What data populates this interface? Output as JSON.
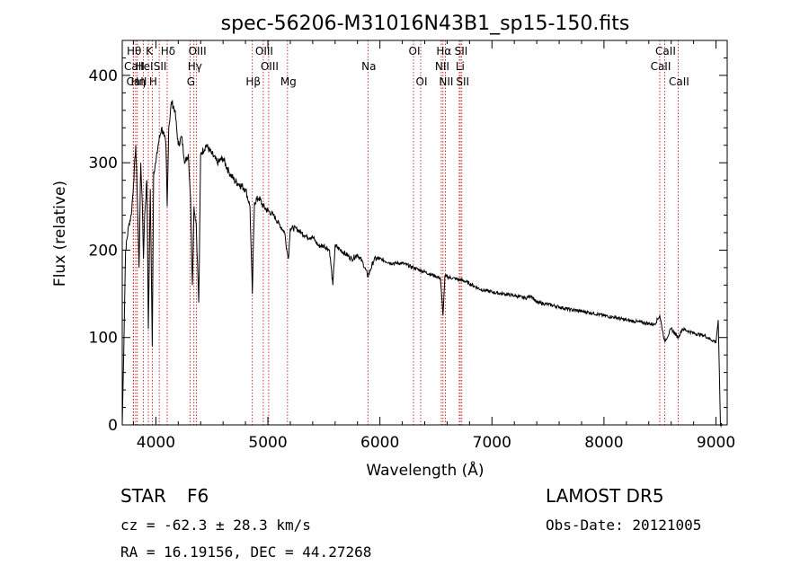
{
  "chart_data": {
    "type": "line",
    "title": "spec-56206-M31016N43B1_sp15-150.fits",
    "xlabel": "Wavelength (Å)",
    "ylabel": "Flux (relative)",
    "xlim": [
      3700,
      9100
    ],
    "ylim": [
      0,
      440
    ],
    "x_ticks": [
      "4000",
      "5000",
      "6000",
      "7000",
      "8000",
      "9000"
    ],
    "y_ticks": [
      "0",
      "100",
      "200",
      "300",
      "400"
    ],
    "grid": false,
    "line_color": "#000000",
    "marker_color": "#c00000",
    "spectrum": {
      "x": [
        3700,
        3710,
        3730,
        3760,
        3780,
        3800,
        3820,
        3835,
        3850,
        3865,
        3880,
        3889,
        3900,
        3920,
        3933,
        3950,
        3968,
        3980,
        4000,
        4020,
        4050,
        4075,
        4090,
        4101,
        4115,
        4140,
        4170,
        4200,
        4230,
        4260,
        4290,
        4310,
        4326,
        4340,
        4360,
        4383,
        4400,
        4450,
        4500,
        4550,
        4600,
        4650,
        4700,
        4750,
        4800,
        4840,
        4861,
        4880,
        4920,
        4960,
        5000,
        5050,
        5100,
        5150,
        5170,
        5183,
        5200,
        5250,
        5300,
        5350,
        5400,
        5450,
        5500,
        5550,
        5580,
        5600,
        5650,
        5700,
        5750,
        5800,
        5850,
        5893,
        5950,
        6000,
        6100,
        6200,
        6300,
        6400,
        6500,
        6540,
        6563,
        6580,
        6650,
        6750,
        6900,
        7000,
        7100,
        7200,
        7300,
        7350,
        7400,
        7500,
        7600,
        7700,
        7800,
        7900,
        8000,
        8100,
        8200,
        8300,
        8400,
        8450,
        8498,
        8542,
        8600,
        8662,
        8700,
        8800,
        8900,
        8950,
        9000,
        9020,
        9040,
        9060
      ],
      "y": [
        0,
        60,
        200,
        230,
        240,
        275,
        320,
        260,
        180,
        300,
        250,
        190,
        240,
        280,
        110,
        270,
        90,
        290,
        300,
        320,
        340,
        330,
        320,
        250,
        340,
        370,
        360,
        320,
        330,
        300,
        310,
        260,
        160,
        250,
        230,
        140,
        310,
        320,
        310,
        300,
        305,
        290,
        280,
        275,
        270,
        250,
        150,
        255,
        260,
        250,
        245,
        240,
        230,
        220,
        200,
        190,
        225,
        225,
        220,
        215,
        215,
        205,
        205,
        200,
        160,
        205,
        200,
        195,
        190,
        195,
        185,
        170,
        190,
        190,
        185,
        185,
        180,
        175,
        170,
        168,
        125,
        170,
        168,
        165,
        155,
        152,
        150,
        148,
        145,
        148,
        140,
        138,
        135,
        132,
        130,
        128,
        125,
        123,
        120,
        118,
        116,
        115,
        125,
        95,
        110,
        100,
        110,
        105,
        102,
        98,
        95,
        120,
        0,
        0
      ]
    },
    "lines": [
      {
        "name": "Hθ",
        "x": 3798,
        "row": 1
      },
      {
        "name": "CaII",
        "x": 3800,
        "row": 2
      },
      {
        "name": "CaII",
        "x": 3820,
        "row": 3
      },
      {
        "name": "Hη",
        "x": 3835,
        "row": 3
      },
      {
        "name": "HeI",
        "x": 3889,
        "row": 2
      },
      {
        "name": "K",
        "x": 3933,
        "row": 1
      },
      {
        "name": "H",
        "x": 3968,
        "row": 3
      },
      {
        "name": "SII",
        "x": 4030,
        "row": 2
      },
      {
        "name": "Hδ",
        "x": 4101,
        "row": 1
      },
      {
        "name": "Hγ",
        "x": 4340,
        "row": 2
      },
      {
        "name": "G",
        "x": 4305,
        "row": 3
      },
      {
        "name": "OIII",
        "x": 4363,
        "row": 1
      },
      {
        "name": "Hβ",
        "x": 4861,
        "row": 3
      },
      {
        "name": "OIII",
        "x": 4959,
        "row": 1
      },
      {
        "name": "OIII",
        "x": 5007,
        "row": 2
      },
      {
        "name": "Mg",
        "x": 5175,
        "row": 3
      },
      {
        "name": "Na",
        "x": 5893,
        "row": 2
      },
      {
        "name": "OI",
        "x": 6300,
        "row": 1
      },
      {
        "name": "OI",
        "x": 6364,
        "row": 3
      },
      {
        "name": "Hα",
        "x": 6563,
        "row": 1
      },
      {
        "name": "NII",
        "x": 6548,
        "row": 2
      },
      {
        "name": "NII",
        "x": 6584,
        "row": 3
      },
      {
        "name": "SII",
        "x": 6717,
        "row": 1
      },
      {
        "name": "Li",
        "x": 6708,
        "row": 2
      },
      {
        "name": "SII",
        "x": 6731,
        "row": 3
      },
      {
        "name": "CaII",
        "x": 8542,
        "row": 1
      },
      {
        "name": "CaII",
        "x": 8498,
        "row": 2
      },
      {
        "name": "CaII",
        "x": 8662,
        "row": 3
      }
    ]
  },
  "info": {
    "object_class": "STAR",
    "subclass": "F6",
    "survey": "LAMOST DR5",
    "redshift": "cz = -62.3 ± 28.3 km/s",
    "obs_date": "Obs-Date: 20121005",
    "coords": "RA =  16.19156, DEC =  44.27268"
  }
}
